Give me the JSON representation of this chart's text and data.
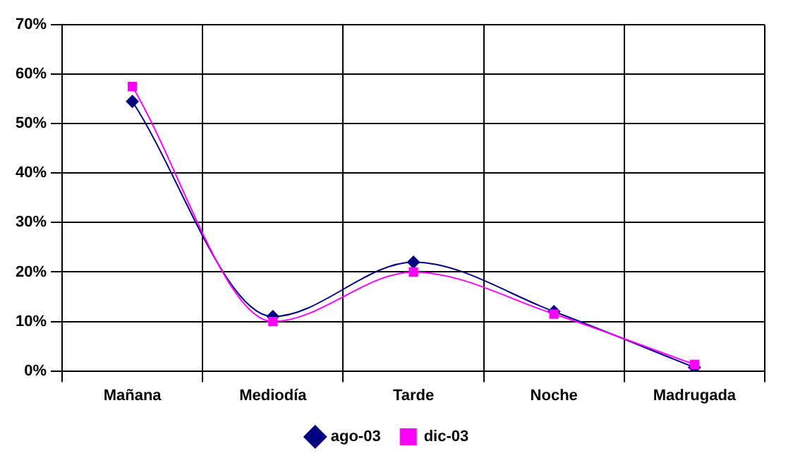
{
  "chart_data": {
    "type": "line",
    "categories": [
      "Mañana",
      "Mediodía",
      "Tarde",
      "Noche",
      "Madrugada"
    ],
    "series": [
      {
        "name": "ago-03",
        "color": "#000080",
        "marker": "diamond",
        "values": [
          54.5,
          11,
          22,
          12,
          0.7
        ]
      },
      {
        "name": "dic-03",
        "color": "#ff00ff",
        "marker": "square",
        "values": [
          57.5,
          10,
          20,
          11.5,
          1.3
        ]
      }
    ],
    "ylim": [
      0,
      70
    ],
    "yticks": [
      {
        "value": 0,
        "label": "0%"
      },
      {
        "value": 10,
        "label": "10%"
      },
      {
        "value": 20,
        "label": "20%"
      },
      {
        "value": 30,
        "label": "30%"
      },
      {
        "value": 40,
        "label": "40%"
      },
      {
        "value": 50,
        "label": "50%"
      },
      {
        "value": 60,
        "label": "60%"
      },
      {
        "value": 70,
        "label": "70%"
      }
    ],
    "grid": true,
    "legend": "bottom",
    "line_style": "solid"
  }
}
